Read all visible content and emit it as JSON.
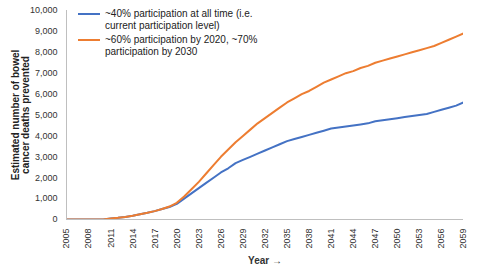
{
  "chart_data": {
    "type": "line",
    "x_label": "Year",
    "y_label": "Estimated number of bowel cancer deaths prevented",
    "x": [
      2005,
      2006,
      2007,
      2008,
      2009,
      2010,
      2011,
      2012,
      2013,
      2014,
      2015,
      2016,
      2017,
      2018,
      2019,
      2020,
      2021,
      2022,
      2023,
      2024,
      2025,
      2026,
      2027,
      2028,
      2029,
      2030,
      2031,
      2032,
      2033,
      2034,
      2035,
      2036,
      2037,
      2038,
      2039,
      2040,
      2041,
      2042,
      2043,
      2044,
      2045,
      2046,
      2047,
      2048,
      2049,
      2050,
      2051,
      2052,
      2053,
      2054,
      2055,
      2056,
      2057,
      2058,
      2059
    ],
    "series": [
      {
        "name": "~40% participation at all time (i.e. current participation level)",
        "color": "#4472c4",
        "values": [
          0,
          0,
          0,
          0,
          0,
          0,
          50,
          80,
          120,
          180,
          250,
          320,
          400,
          500,
          600,
          750,
          1000,
          1250,
          1500,
          1750,
          2000,
          2250,
          2450,
          2700,
          2850,
          3000,
          3150,
          3300,
          3450,
          3600,
          3750,
          3850,
          3950,
          4050,
          4150,
          4250,
          4350,
          4400,
          4450,
          4500,
          4550,
          4600,
          4700,
          4750,
          4800,
          4850,
          4900,
          4950,
          5000,
          5050,
          5150,
          5250,
          5350,
          5450,
          5600
        ]
      },
      {
        "name": "~60% participation by 2020, ~70% participation by 2030",
        "color": "#ed7d31",
        "values": [
          0,
          0,
          0,
          0,
          0,
          0,
          50,
          80,
          120,
          180,
          250,
          320,
          400,
          500,
          620,
          800,
          1100,
          1450,
          1800,
          2200,
          2600,
          3000,
          3350,
          3700,
          4000,
          4300,
          4600,
          4850,
          5100,
          5350,
          5600,
          5800,
          6000,
          6150,
          6350,
          6550,
          6700,
          6850,
          7000,
          7100,
          7250,
          7350,
          7500,
          7600,
          7700,
          7800,
          7900,
          8000,
          8100,
          8200,
          8300,
          8450,
          8600,
          8750,
          8900
        ]
      }
    ],
    "xlim": [
      2005,
      2059
    ],
    "xticks": [
      2005,
      2008,
      2011,
      2014,
      2017,
      2020,
      2023,
      2026,
      2029,
      2032,
      2035,
      2038,
      2041,
      2044,
      2047,
      2050,
      2053,
      2056,
      2059
    ],
    "ylim": [
      0,
      10000
    ],
    "yticks": [
      0,
      {
        "value": 1000,
        "label": "1,000"
      },
      {
        "value": 2000,
        "label": "2,000"
      },
      {
        "value": 3000,
        "label": "3,000"
      },
      {
        "value": 4000,
        "label": "4,000"
      },
      {
        "value": 5000,
        "label": "5,000"
      },
      {
        "value": 6000,
        "label": "6,000"
      },
      {
        "value": 7000,
        "label": "7,000"
      },
      {
        "value": 8000,
        "label": "8,000"
      },
      {
        "value": 9000,
        "label": "9,000"
      },
      {
        "value": 10000,
        "label": "10,000"
      }
    ],
    "grid": false,
    "legend": "top-left"
  }
}
